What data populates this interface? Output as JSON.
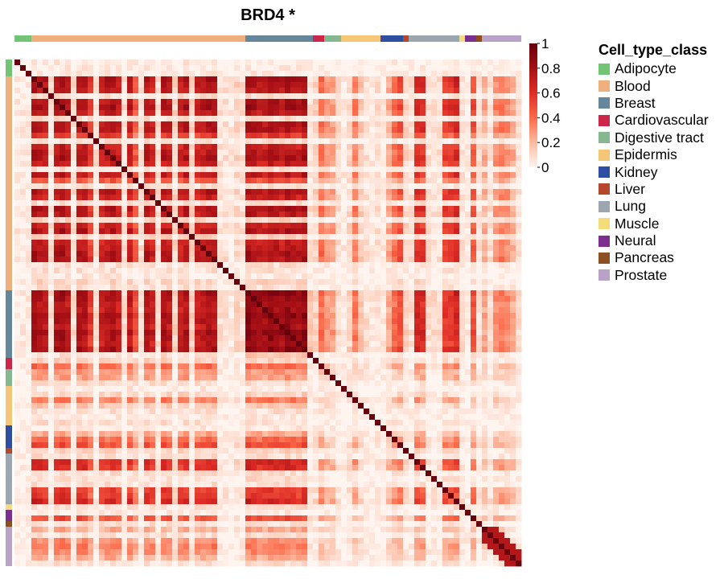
{
  "chart_data": {
    "type": "heatmap",
    "title": "BRD4 *",
    "n": 90,
    "colorbar": {
      "ticks": [
        "1",
        "0.8",
        "0.6",
        "0.4",
        "0.2",
        "0"
      ],
      "range": [
        0,
        1
      ],
      "colors": [
        "#fff5f0",
        "#fcbba1",
        "#fb6a4a",
        "#de2d26",
        "#a50f15",
        "#67000d"
      ]
    },
    "legend": {
      "title": "Cell_type_class",
      "position": "right",
      "items": [
        {
          "label": "Adipocyte",
          "color": "#74c476"
        },
        {
          "label": "Blood",
          "color": "#f0b07d"
        },
        {
          "label": "Breast",
          "color": "#66879b"
        },
        {
          "label": "Cardiovascular",
          "color": "#cc2748"
        },
        {
          "label": "Digestive tract",
          "color": "#85b88e"
        },
        {
          "label": "Epidermis",
          "color": "#f6c677"
        },
        {
          "label": "Kidney",
          "color": "#2e4fa1"
        },
        {
          "label": "Liver",
          "color": "#b5482b"
        },
        {
          "label": "Lung",
          "color": "#9ba6ae"
        },
        {
          "label": "Muscle",
          "color": "#f4dc7a"
        },
        {
          "label": "Neural",
          "color": "#7b2f8e"
        },
        {
          "label": "Pancreas",
          "color": "#8c4f22"
        },
        {
          "label": "Prostate",
          "color": "#b9a2c7"
        }
      ]
    },
    "annotation_groups": [
      {
        "class": "Adipocyte",
        "count": 3
      },
      {
        "class": "Blood",
        "count": 38
      },
      {
        "class": "Breast",
        "count": 12
      },
      {
        "class": "Cardiovascular",
        "count": 2
      },
      {
        "class": "Digestive tract",
        "count": 3
      },
      {
        "class": "Epidermis",
        "count": 7
      },
      {
        "class": "Kidney",
        "count": 4
      },
      {
        "class": "Liver",
        "count": 1
      },
      {
        "class": "Lung",
        "count": 9
      },
      {
        "class": "Muscle",
        "count": 1
      },
      {
        "class": "Neural",
        "count": 2
      },
      {
        "class": "Pancreas",
        "count": 1
      },
      {
        "class": "Prostate",
        "count": 7
      }
    ],
    "row_strength": [
      0.05,
      0.05,
      0.05,
      1,
      0.95,
      0.9,
      0.1,
      0.95,
      1,
      0.9,
      0.1,
      0.95,
      0.95,
      0.7,
      0.1,
      0.85,
      0.9,
      0.95,
      0.85,
      0.1,
      0.9,
      0.6,
      0.1,
      0.95,
      0.85,
      0.1,
      0.95,
      0.9,
      0.15,
      0.85,
      0.95,
      0.15,
      0.85,
      0.9,
      0.95,
      0.95,
      0.1,
      0.1,
      0.05,
      0.15,
      0.1,
      1,
      0.95,
      0.9,
      0.9,
      1,
      0.95,
      0.9,
      1,
      0.95,
      0.9,
      1,
      0.1,
      0.15,
      0.5,
      0.35,
      0.35,
      0.1,
      0.05,
      0.15,
      0.45,
      0.2,
      0.1,
      0.05,
      0.1,
      0.05,
      0.3,
      0.5,
      0.6,
      0.15,
      0.1,
      0.8,
      0.75,
      0.1,
      0.1,
      0.1,
      0.7,
      0.7,
      0.8,
      0.1,
      0.05,
      0.6,
      0.1,
      0.3,
      0.1,
      0.4,
      0.45,
      0.4,
      0.3,
      0.1
    ]
  }
}
